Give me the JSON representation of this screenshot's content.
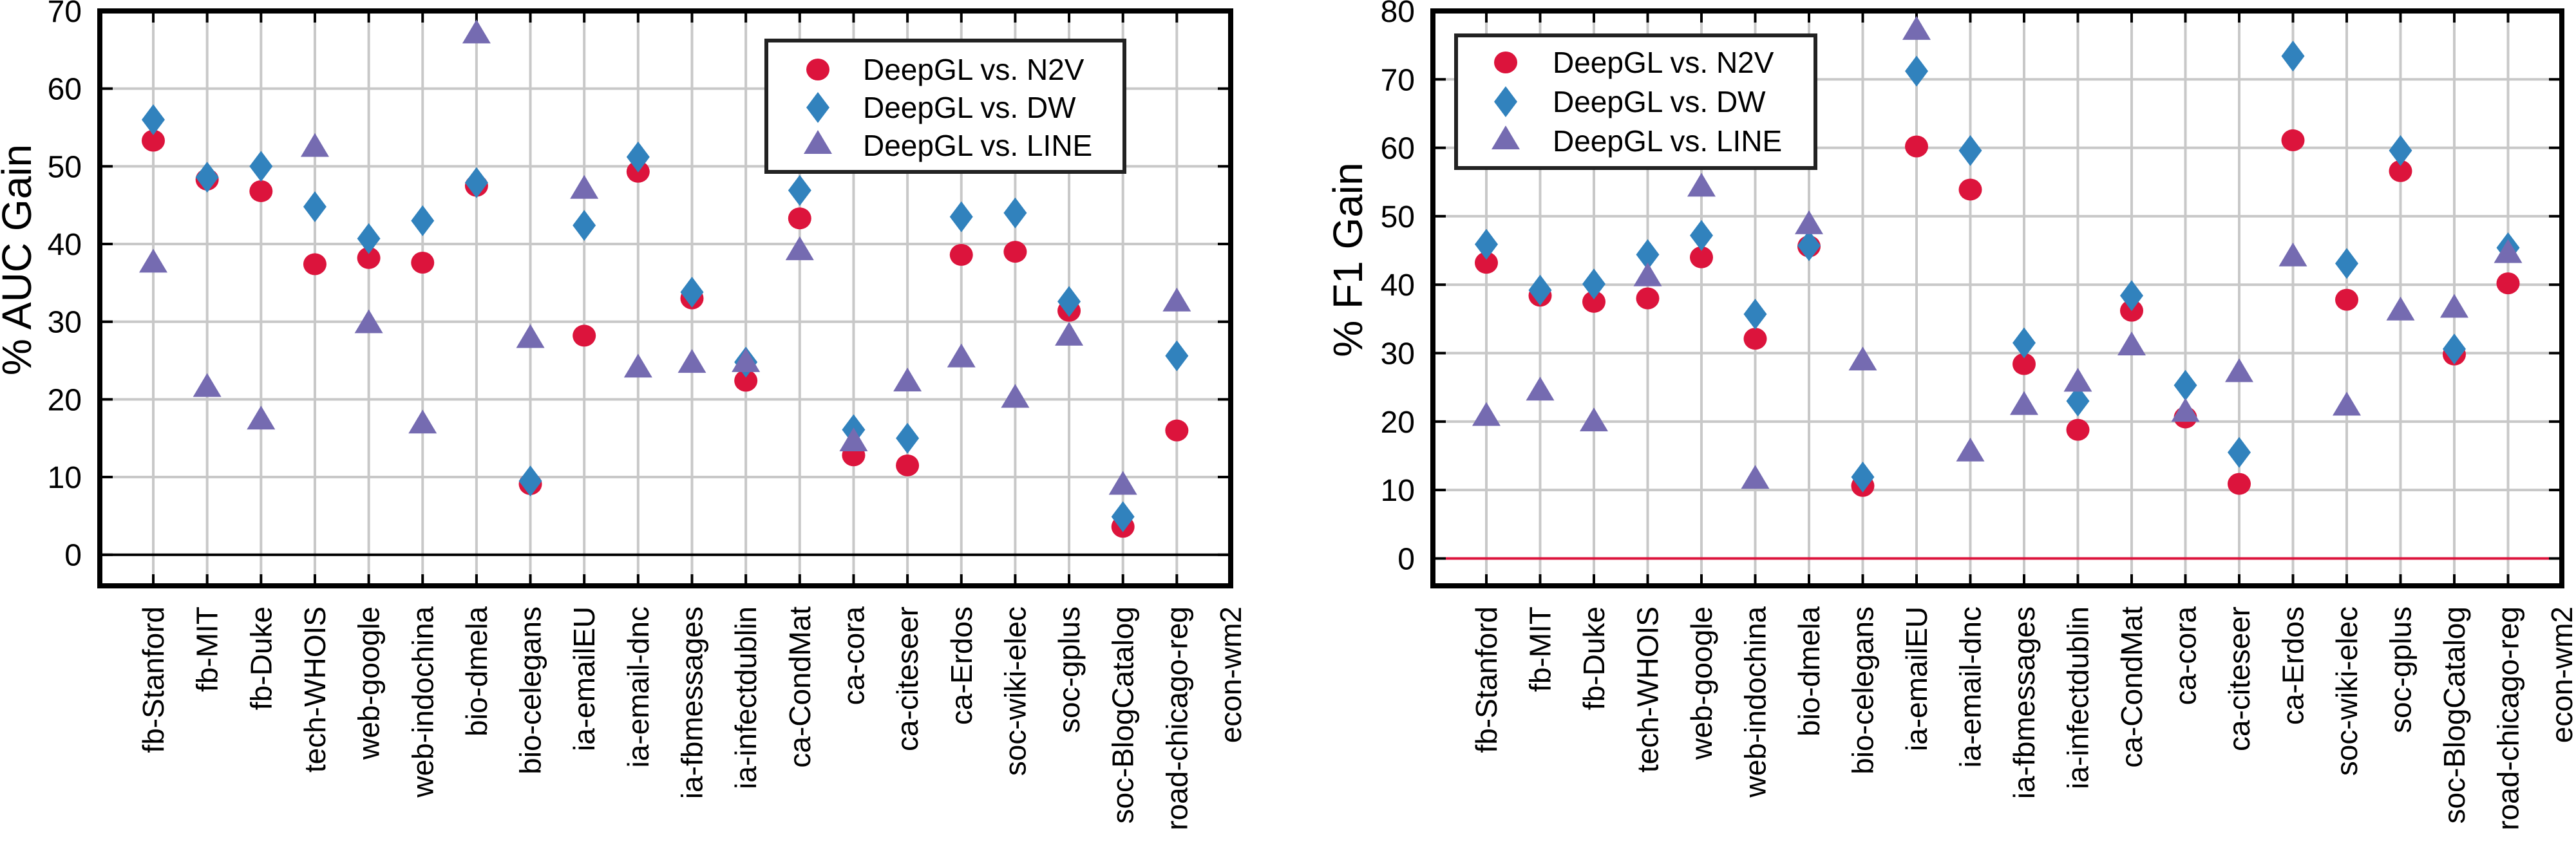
{
  "chart_data": [
    {
      "type": "scatter",
      "title": "",
      "xlabel": "",
      "ylabel": "% AUC Gain",
      "ylim": [
        -4,
        70
      ],
      "yticks": [
        0,
        10,
        20,
        30,
        40,
        50,
        60,
        70
      ],
      "grid": true,
      "zero_line_color": "#000000",
      "legend_position": "top-right",
      "categories": [
        "fb-Stanford",
        "fb-MIT",
        "fb-Duke",
        "tech-WHOIS",
        "web-google",
        "web-indochina",
        "bio-dmela",
        "bio-celegans",
        "ia-emailEU",
        "ia-email-dnc",
        "ia-fbmessages",
        "ia-infectdublin",
        "ca-CondMat",
        "ca-cora",
        "ca-citeseer",
        "ca-Erdos",
        "soc-wiki-elec",
        "soc-gplus",
        "soc-BlogCatalog",
        "road-chicago-reg",
        "econ-wm2"
      ],
      "series": [
        {
          "name": "DeepGL vs. N2V",
          "marker": "circle",
          "color": "#DC143C",
          "values": [
            53.3,
            48.3,
            46.8,
            37.4,
            38.2,
            37.6,
            47.5,
            9.1,
            28.2,
            49.3,
            33.0,
            22.4,
            43.3,
            12.8,
            11.5,
            38.6,
            39.0,
            31.4,
            3.6,
            16.0,
            null
          ]
        },
        {
          "name": "DeepGL vs. DW",
          "marker": "diamond",
          "color": "#3182BD",
          "values": [
            56.0,
            48.6,
            50.0,
            44.8,
            40.7,
            43.0,
            47.9,
            9.5,
            42.4,
            51.2,
            33.8,
            24.8,
            46.9,
            16.1,
            15.0,
            43.5,
            44.0,
            32.6,
            4.9,
            25.6,
            null
          ]
        },
        {
          "name": "DeepGL vs. LINE",
          "marker": "triangle",
          "color": "#756BB1",
          "values": [
            37.4,
            21.4,
            17.2,
            52.3,
            29.6,
            16.7,
            66.9,
            27.7,
            46.9,
            23.9,
            24.5,
            24.6,
            39.0,
            14.4,
            22.1,
            25.2,
            20.0,
            28.0,
            8.8,
            32.4,
            null
          ]
        }
      ]
    },
    {
      "type": "scatter",
      "title": "",
      "xlabel": "",
      "ylabel": "% F1 Gain",
      "ylim": [
        -4,
        80
      ],
      "yticks": [
        0,
        10,
        20,
        30,
        40,
        50,
        60,
        70,
        80
      ],
      "grid": true,
      "zero_line_color": "#DC143C",
      "legend_position": "top-left",
      "categories": [
        "fb-Stanford",
        "fb-MIT",
        "fb-Duke",
        "tech-WHOIS",
        "web-google",
        "web-indochina",
        "bio-dmela",
        "bio-celegans",
        "ia-emailEU",
        "ia-email-dnc",
        "ia-fbmessages",
        "ia-infectdublin",
        "ca-CondMat",
        "ca-cora",
        "ca-citeseer",
        "ca-Erdos",
        "soc-wiki-elec",
        "soc-gplus",
        "soc-BlogCatalog",
        "road-chicago-reg",
        "econ-wm2"
      ],
      "series": [
        {
          "name": "DeepGL vs. N2V",
          "marker": "circle",
          "color": "#DC143C",
          "values": [
            43.2,
            38.4,
            37.5,
            38.0,
            44.0,
            32.1,
            45.6,
            10.6,
            60.2,
            53.9,
            28.4,
            18.8,
            36.2,
            20.6,
            10.9,
            61.1,
            37.8,
            56.6,
            29.8,
            40.2,
            null
          ]
        },
        {
          "name": "DeepGL vs. DW",
          "marker": "diamond",
          "color": "#3182BD",
          "values": [
            45.9,
            39.2,
            40.1,
            44.4,
            47.2,
            35.7,
            45.7,
            11.9,
            71.2,
            59.6,
            31.5,
            23.0,
            38.4,
            25.3,
            15.5,
            73.4,
            43.1,
            59.6,
            30.6,
            45.4,
            null
          ]
        },
        {
          "name": "DeepGL vs. LINE",
          "marker": "triangle",
          "color": "#756BB1",
          "values": [
            20.6,
            24.3,
            19.8,
            41.0,
            54.1,
            11.4,
            48.6,
            28.7,
            77.0,
            15.4,
            22.2,
            25.6,
            30.9,
            21.2,
            27.0,
            43.9,
            22.1,
            36.0,
            36.4,
            44.4,
            null
          ]
        }
      ]
    }
  ]
}
